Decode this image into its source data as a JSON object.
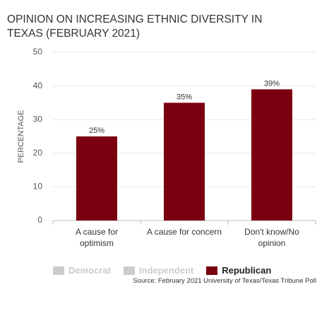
{
  "chart_data": {
    "type": "bar",
    "title": "OPINION ON INCREASING ETHNIC DIVERSITY IN TEXAS (FEBRUARY 2021)",
    "y_label": "PERCENTAGE",
    "categories": [
      "A cause for optimism",
      "A cause for concern",
      "Don't know/No opinion"
    ],
    "series": [
      {
        "name": "Democrat",
        "color": "#cccccc",
        "values": [
          null,
          null,
          null
        ]
      },
      {
        "name": "Independent",
        "color": "#cccccc",
        "values": [
          null,
          null,
          null
        ]
      },
      {
        "name": "Republican",
        "color": "#7a0010",
        "values": [
          25,
          35,
          39
        ],
        "value_labels": [
          "25%",
          "35%",
          "39%"
        ]
      }
    ],
    "ylim": [
      0,
      50
    ],
    "yticks": [
      0,
      10,
      20,
      30,
      40,
      50
    ],
    "grid": true,
    "source": "Source: February 2021 University of Texas/Texas Tribune Poll"
  }
}
